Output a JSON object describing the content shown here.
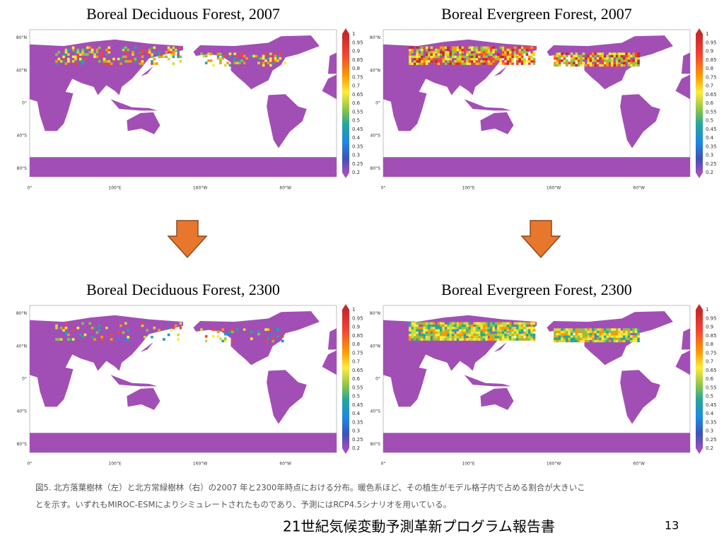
{
  "panels": [
    {
      "title": "Boreal Deciduous Forest, 2007"
    },
    {
      "title": "Boreal Evergreen Forest, 2007"
    },
    {
      "title": "Boreal Deciduous Forest, 2300"
    },
    {
      "title": "Boreal Evergreen Forest, 2300"
    }
  ],
  "map_axes": {
    "lat_labels": [
      "80°N",
      "40°N",
      "0°",
      "40°S",
      "80°S"
    ],
    "lon_labels": [
      "0°",
      "100°E",
      "160°W",
      "60°W"
    ]
  },
  "colorbar": {
    "labels": [
      "1",
      "0.95",
      "0.9",
      "0.85",
      "0.8",
      "0.75",
      "0.7",
      "0.65",
      "0.6",
      "0.55",
      "0.5",
      "0.45",
      "0.4",
      "0.35",
      "0.3",
      "0.25",
      "0.2"
    ]
  },
  "caption": [
    "図5. 北方落葉樹林（左）と北方常緑樹林（右）の2007 年と2300年時点における分布。暖色系ほど、その植生がモデル格子内で占める割合が大きいこ",
    "とを示す。いずれもMIROC-ESMによりシミュレートされたものであり、予測にはRCP4.5シナリオを用いている。"
  ],
  "footer": "21世紀気候変動予測革新プログラム報告書",
  "page_number": "13"
}
